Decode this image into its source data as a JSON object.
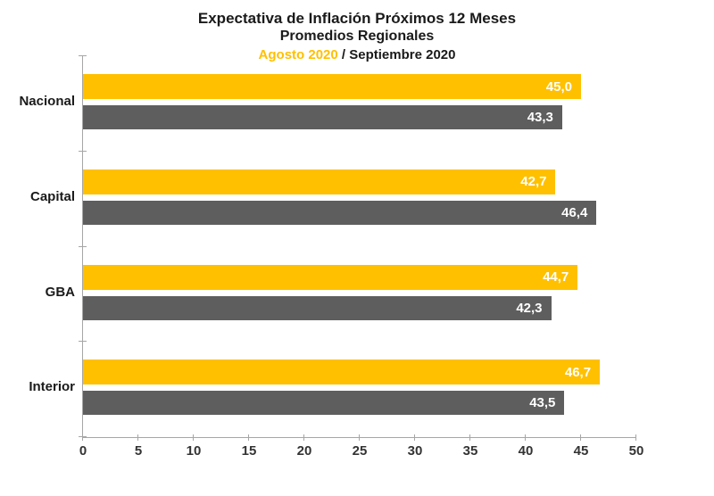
{
  "title": {
    "line1": "Expectativa de Inflación Próximos 12 Meses",
    "line2": "Promedios Regionales",
    "subtitle_highlight": "Agosto 2020",
    "subtitle_rest": " / Septiembre 2020"
  },
  "colors": {
    "agosto_bar": "#FFC000",
    "septiembre_bar": "#5E5E5E",
    "axis": "#a6a6a6",
    "tick_label": "#333333",
    "value_label": "#FFFFFF",
    "title_text": "#1a1a1a",
    "subtitle_highlight": "#FFC000"
  },
  "chart_data": {
    "type": "bar",
    "orientation": "horizontal",
    "title": "Expectativa de Inflación Próximos 12 Meses",
    "subtitle": "Promedios Regionales",
    "legend_note": "Legend embedded in subtitle line: 'Agosto 2020' shown in yellow, 'Septiembre 2020' in black",
    "categories": [
      "Nacional",
      "Capital",
      "GBA",
      "Interior"
    ],
    "series": [
      {
        "name": "Agosto 2020",
        "color": "#FFC000",
        "values": [
          45.0,
          42.7,
          44.7,
          46.7
        ],
        "labels": [
          "45,0",
          "42,7",
          "44,7",
          "46,7"
        ]
      },
      {
        "name": "Septiembre 2020",
        "color": "#5E5E5E",
        "values": [
          43.3,
          46.4,
          42.3,
          43.5
        ],
        "labels": [
          "43,3",
          "46,4",
          "42,3",
          "43,5"
        ]
      }
    ],
    "xlabel": "",
    "ylabel": "",
    "xlim": [
      0,
      50
    ],
    "x_ticks": [
      0,
      5,
      10,
      15,
      20,
      25,
      30,
      35,
      40,
      45,
      50
    ],
    "grid": false
  }
}
